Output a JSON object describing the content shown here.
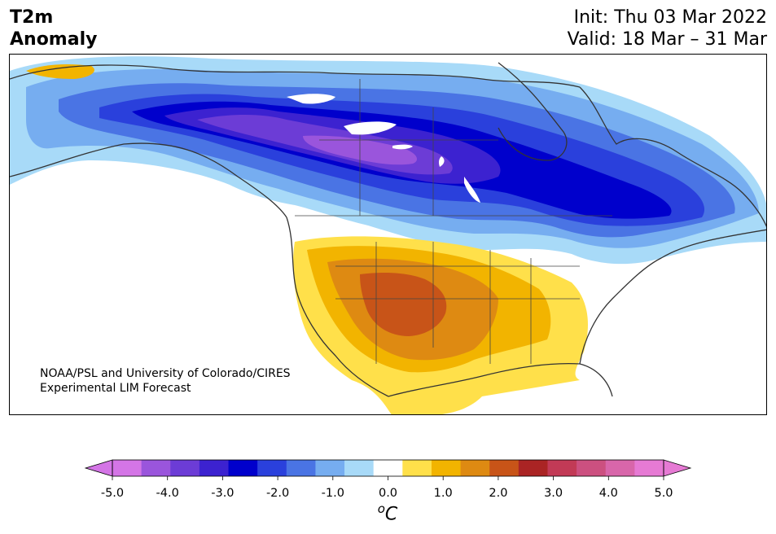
{
  "title": {
    "left_line1": "T2m",
    "left_line2": "Anomaly",
    "right_line1": "Init: Thu 03 Mar 2022",
    "right_line2": "Valid: 18 Mar – 31 Mar"
  },
  "credit": {
    "line1": "NOAA/PSL and University of Colorado/CIRES",
    "line2": "Experimental LIM Forecast"
  },
  "colorbar": {
    "unit_label": "oC",
    "tick_labels": [
      "-5.0",
      "-4.0",
      "-3.0",
      "-2.0",
      "-1.0",
      "0.0",
      "1.0",
      "2.0",
      "3.0",
      "4.0",
      "5.0"
    ],
    "range": [
      -5.0,
      5.0
    ],
    "colors": [
      "#d475e6",
      "#9a55dc",
      "#6c3cd6",
      "#3c22d0",
      "#0000cc",
      "#2a40dc",
      "#4a74e4",
      "#76adf0",
      "#a8daf8",
      "#ffffff",
      "#ffe04a",
      "#f2b400",
      "#de8a12",
      "#c85418",
      "#aa2424",
      "#c23a56",
      "#cc5080",
      "#d866aa",
      "#e67ad4"
    ],
    "under_color": "#d475e6",
    "over_color": "#e67ad4"
  },
  "map": {
    "region": "North America",
    "variable": "T2m Anomaly",
    "cold_anomaly_center": "central Canada",
    "warm_anomaly_center": "southwestern United States"
  }
}
